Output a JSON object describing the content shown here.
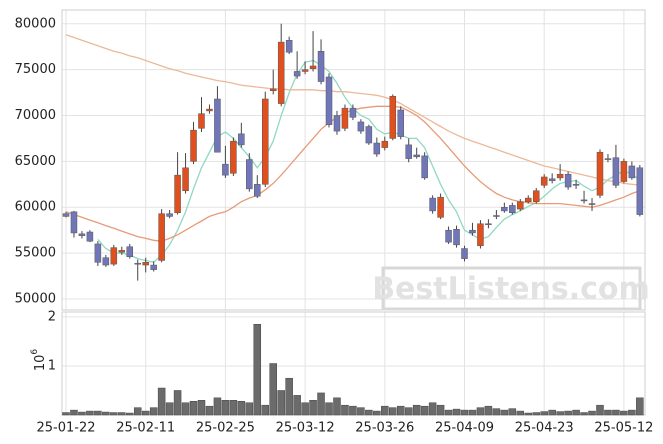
{
  "chart_data": {
    "type": "candlestick",
    "watermark": "BestListens.com",
    "categories": [
      "25-01-22",
      null,
      null,
      null,
      null,
      null,
      null,
      null,
      null,
      null,
      "25-02-11",
      null,
      null,
      null,
      null,
      null,
      null,
      null,
      null,
      null,
      "25-02-25",
      null,
      null,
      null,
      null,
      null,
      null,
      null,
      null,
      null,
      "25-03-12",
      null,
      null,
      null,
      null,
      null,
      null,
      null,
      null,
      null,
      "25-03-26",
      null,
      null,
      null,
      null,
      null,
      null,
      null,
      null,
      null,
      "25-04-09",
      null,
      null,
      null,
      null,
      null,
      null,
      null,
      null,
      null,
      "25-04-23",
      null,
      null,
      null,
      null,
      null,
      null,
      null,
      null,
      null,
      "25-05-12",
      null,
      null
    ],
    "open": [
      59300,
      59500,
      57100,
      57300,
      56000,
      54500,
      53800,
      55100,
      55700,
      53900,
      53700,
      53700,
      54200,
      59300,
      59400,
      61800,
      65000,
      68600,
      70500,
      71800,
      64700,
      63700,
      68000,
      65200,
      62500,
      62500,
      72700,
      71300,
      78200,
      74800,
      74800,
      75100,
      77000,
      74200,
      70000,
      68600,
      70800,
      69300,
      68800,
      67000,
      66500,
      67500,
      70600,
      66800,
      65700,
      65600,
      61000,
      58900,
      57500,
      57600,
      55500,
      57500,
      55800,
      58200,
      59100,
      60000,
      60200,
      59800,
      60600,
      60600,
      62400,
      63100,
      63200,
      63600,
      62500,
      60800,
      60400,
      61300,
      65300,
      65400,
      62800,
      64500,
      64300
    ],
    "high": [
      59500,
      59600,
      57400,
      57500,
      56300,
      54800,
      55900,
      55700,
      56000,
      54300,
      54500,
      54100,
      59800,
      59700,
      66000,
      65900,
      69300,
      72000,
      71200,
      73200,
      66700,
      67600,
      69200,
      65900,
      63500,
      72600,
      75000,
      80000,
      78600,
      77000,
      75900,
      79200,
      78300,
      74600,
      70500,
      71200,
      71200,
      69600,
      69000,
      67600,
      67700,
      72300,
      71000,
      67500,
      66500,
      66000,
      61300,
      61500,
      57900,
      58000,
      55800,
      58300,
      58600,
      58700,
      59700,
      60500,
      60500,
      60900,
      61300,
      62100,
      63600,
      63700,
      64700,
      63900,
      63000,
      61800,
      61000,
      66300,
      65800,
      66800,
      65300,
      65000,
      64600
    ],
    "low": [
      58900,
      56700,
      56600,
      56200,
      53600,
      53500,
      53600,
      54800,
      54400,
      52000,
      52900,
      53000,
      54000,
      58800,
      59200,
      61500,
      64700,
      68200,
      70200,
      66000,
      63200,
      63400,
      66500,
      61700,
      61000,
      62200,
      72300,
      71000,
      76700,
      74000,
      74500,
      74800,
      73400,
      68700,
      67900,
      68300,
      69500,
      68000,
      66800,
      65500,
      66200,
      67300,
      67400,
      64900,
      65300,
      63000,
      59300,
      58700,
      56000,
      55600,
      54100,
      56900,
      55500,
      57700,
      58700,
      59400,
      59200,
      59600,
      60400,
      60400,
      62100,
      62600,
      62900,
      61900,
      62000,
      60400,
      59600,
      61000,
      64900,
      62100,
      62600,
      63000,
      59000
    ],
    "close": [
      59000,
      57200,
      56900,
      56300,
      54000,
      53700,
      55600,
      55300,
      54600,
      53800,
      54000,
      53200,
      59300,
      59000,
      63500,
      64300,
      68400,
      70200,
      70700,
      66000,
      63500,
      67200,
      66800,
      62000,
      61200,
      71800,
      72900,
      78000,
      76900,
      74300,
      75000,
      75400,
      73700,
      69000,
      68300,
      70800,
      69800,
      68300,
      67000,
      65800,
      67200,
      72100,
      67700,
      65300,
      65500,
      63200,
      59600,
      61100,
      56200,
      55900,
      54400,
      57200,
      58200,
      58100,
      59000,
      59600,
      59400,
      60600,
      61000,
      61800,
      63300,
      62900,
      63600,
      62200,
      62400,
      60700,
      60300,
      66000,
      65200,
      62400,
      65000,
      63200,
      59200
    ],
    "up_color": "#e0501e",
    "down_color": "#7176b8",
    "ma_lines": [
      {
        "color": "#8fd9c3",
        "values": [
          null,
          null,
          null,
          null,
          56500,
          55500,
          55000,
          55000,
          54800,
          54400,
          54200,
          54000,
          54800,
          55900,
          57500,
          59500,
          62000,
          64300,
          66000,
          67700,
          68200,
          67500,
          66500,
          65500,
          64300,
          65500,
          67200,
          70000,
          72500,
          74500,
          75800,
          76000,
          75500,
          74800,
          73500,
          72000,
          70800,
          70000,
          69600,
          68500,
          68000,
          68200,
          67900,
          67500,
          67500,
          66500,
          64500,
          62500,
          60800,
          59500,
          57500,
          57000,
          56500,
          56800,
          57800,
          58700,
          59200,
          59600,
          60100,
          60500,
          61200,
          62000,
          62600,
          62800,
          62900,
          62300,
          61800,
          62200,
          63000,
          63500,
          64000,
          63600,
          63000
        ]
      },
      {
        "color": "#e89a78",
        "values": [
          59500,
          59200,
          58900,
          58600,
          58300,
          58000,
          57700,
          57400,
          57100,
          56800,
          56600,
          56400,
          56300,
          56600,
          57000,
          57500,
          58000,
          58500,
          59000,
          59300,
          59500,
          60000,
          60600,
          61000,
          61300,
          61900,
          62600,
          63500,
          64500,
          65500,
          66500,
          67500,
          68500,
          69200,
          69800,
          70300,
          70600,
          70800,
          70900,
          71000,
          71000,
          71000,
          70900,
          70500,
          70000,
          69300,
          68400,
          67500,
          66500,
          65500,
          64500,
          63600,
          62800,
          62100,
          61500,
          61100,
          60800,
          60600,
          60500,
          60400,
          60400,
          60400,
          60400,
          60300,
          60200,
          60100,
          60000,
          60200,
          60500,
          60800,
          61100,
          61500,
          61800
        ]
      },
      {
        "color": "#edb899",
        "values": [
          78800,
          78500,
          78200,
          77900,
          77600,
          77300,
          77000,
          76800,
          76500,
          76300,
          76000,
          75700,
          75400,
          75100,
          74900,
          74600,
          74400,
          74200,
          74000,
          73800,
          73700,
          73500,
          73300,
          73200,
          73100,
          73000,
          72900,
          72900,
          72800,
          72800,
          72800,
          72800,
          72700,
          72700,
          72600,
          72600,
          72500,
          72400,
          72300,
          72200,
          72000,
          71700,
          71300,
          70800,
          70300,
          69800,
          69300,
          68800,
          68300,
          67900,
          67500,
          67200,
          66900,
          66600,
          66300,
          66000,
          65700,
          65400,
          65100,
          64800,
          64500,
          64300,
          64100,
          63900,
          63700,
          63500,
          63300,
          63100,
          62900,
          62800,
          62600,
          62500,
          62400
        ]
      }
    ],
    "ylim": [
      48800,
      81500
    ],
    "yticks": [
      50000,
      55000,
      60000,
      65000,
      70000,
      75000,
      80000
    ],
    "grid": true,
    "volume": {
      "type": "bar",
      "color": "#6b6b6b",
      "values": [
        0.05,
        0.1,
        0.06,
        0.08,
        0.08,
        0.06,
        0.05,
        0.05,
        0.04,
        0.15,
        0.08,
        0.15,
        0.55,
        0.25,
        0.5,
        0.25,
        0.28,
        0.3,
        0.18,
        0.35,
        0.3,
        0.3,
        0.28,
        0.25,
        1.85,
        0.2,
        1.05,
        0.5,
        0.75,
        0.4,
        0.25,
        0.3,
        0.45,
        0.25,
        0.35,
        0.2,
        0.18,
        0.15,
        0.1,
        0.08,
        0.18,
        0.15,
        0.18,
        0.15,
        0.2,
        0.18,
        0.25,
        0.2,
        0.1,
        0.12,
        0.1,
        0.1,
        0.15,
        0.18,
        0.13,
        0.1,
        0.13,
        0.08,
        0.04,
        0.05,
        0.07,
        0.1,
        0.07,
        0.08,
        0.1,
        0.05,
        0.08,
        0.2,
        0.1,
        0.1,
        0.08,
        0.1,
        0.35
      ],
      "ylim": [
        0,
        2.1
      ],
      "yticks": [
        1,
        2
      ],
      "scale_label": {
        "base": "10",
        "exponent": "6"
      }
    }
  }
}
